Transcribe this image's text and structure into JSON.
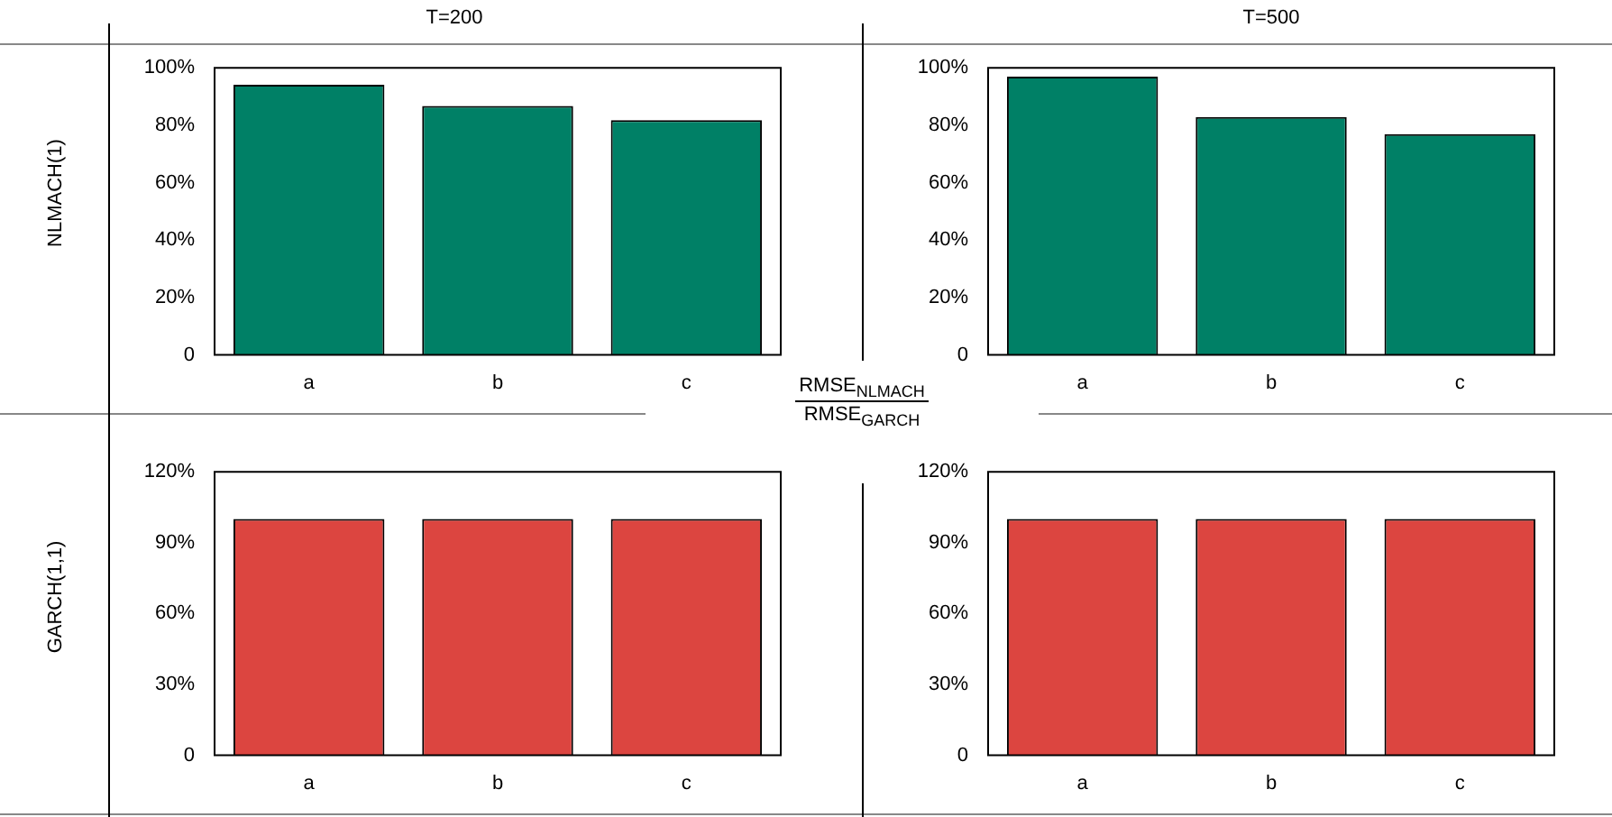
{
  "chart_data": [
    {
      "type": "bar",
      "title": "T=200",
      "ylabel": "NLMACH(1)",
      "categories": [
        "a",
        "b",
        "c"
      ],
      "values": [
        94.1,
        86.7,
        81.8
      ],
      "color": "#008066",
      "ylim": [
        0,
        100
      ],
      "yticks": [
        {
          "value": 0,
          "label": "0"
        },
        {
          "value": 20,
          "label": "20%"
        },
        {
          "value": 40,
          "label": "40%"
        },
        {
          "value": 60,
          "label": "60%"
        },
        {
          "value": 80,
          "label": "80%"
        },
        {
          "value": 100,
          "label": "100%"
        }
      ],
      "annotations": [
        "RMSE$_{NLMACH}$",
        "RMSE$_{GARCH}$"
      ]
    },
    {
      "type": "bar",
      "title": "T=500",
      "categories": [
        "a",
        "b",
        "c"
      ],
      "values": [
        96.9,
        82.9,
        76.9
      ],
      "color": "#008066",
      "ylim": [
        0,
        100
      ],
      "yticks": [
        {
          "value": 0,
          "label": "0"
        },
        {
          "value": 20,
          "label": "20%"
        },
        {
          "value": 40,
          "label": "40%"
        },
        {
          "value": 60,
          "label": "60%"
        },
        {
          "value": 80,
          "label": "80%"
        },
        {
          "value": 100,
          "label": "100%"
        }
      ]
    },
    {
      "type": "bar",
      "ylabel": "GARCH(1,1)",
      "categories": [
        "a",
        "b",
        "c"
      ],
      "values": [
        100,
        100,
        100
      ],
      "color": "#dc4540",
      "ylim": [
        0,
        120
      ],
      "yticks": [
        {
          "value": 0,
          "label": "0"
        },
        {
          "value": 30,
          "label": "30%"
        },
        {
          "value": 60,
          "label": "60%"
        },
        {
          "value": 90,
          "label": "90%"
        },
        {
          "value": 120,
          "label": "120%"
        }
      ]
    },
    {
      "type": "bar",
      "categories": [
        "a",
        "b",
        "c"
      ],
      "values": [
        100,
        100,
        100
      ],
      "color": "#dc4540",
      "ylim": [
        0,
        120
      ],
      "yticks": [
        {
          "value": 0,
          "label": "0"
        },
        {
          "value": 30,
          "label": "30%"
        },
        {
          "value": 60,
          "label": "60%"
        },
        {
          "value": 90,
          "label": "90%"
        },
        {
          "value": 120,
          "label": "120%"
        }
      ]
    }
  ]
}
